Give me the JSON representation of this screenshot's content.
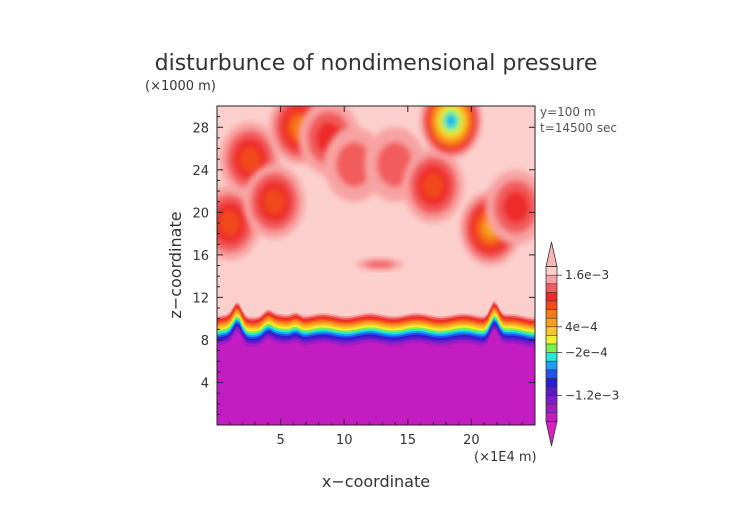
{
  "chart_data": {
    "type": "heatmap",
    "title": "disturbunce of nondimensional pressure",
    "y_unit": "(×1000 m)",
    "x_unit": "(×1E4 m)",
    "xlabel": "x−coordinate",
    "ylabel": "z−coordinate",
    "info_lines": [
      "y=100 m",
      "t=14500 sec"
    ],
    "xlim": [
      0,
      25
    ],
    "ylim": [
      0,
      30
    ],
    "x_ticks": [
      5,
      10,
      15,
      20
    ],
    "y_ticks": [
      4,
      8,
      12,
      16,
      20,
      24,
      28
    ],
    "x_tick_labels": [
      "5",
      "10",
      "15",
      "20"
    ],
    "y_tick_labels": [
      "4",
      "8",
      "12",
      "16",
      "20",
      "24",
      "28"
    ],
    "colorbar": {
      "labels": [
        {
          "value": 0.0016,
          "text": "1.6e−3"
        },
        {
          "value": 0.0004,
          "text": "4e−4"
        },
        {
          "value": -0.0002,
          "text": "−2e−4"
        },
        {
          "value": -0.0012,
          "text": "−1.2e−3"
        }
      ],
      "levels": [
        {
          "upper": 0.0022,
          "color": "#f8b7b4"
        },
        {
          "upper": 0.0018,
          "color": "#fbd0cc"
        },
        {
          "upper": 0.0016,
          "color": "#f7a3a3"
        },
        {
          "upper": 0.0014,
          "color": "#f25c5c"
        },
        {
          "upper": 0.0012,
          "color": "#ee2a2a"
        },
        {
          "upper": 0.001,
          "color": "#f24a1a"
        },
        {
          "upper": 0.0008,
          "color": "#f77a18"
        },
        {
          "upper": 0.0006,
          "color": "#f9a020"
        },
        {
          "upper": 0.0004,
          "color": "#fcc52a"
        },
        {
          "upper": 0.0002,
          "color": "#f3f02e"
        },
        {
          "upper": 0.0,
          "color": "#7df04a"
        },
        {
          "upper": -0.0002,
          "color": "#23e8d8"
        },
        {
          "upper": -0.0004,
          "color": "#1a9ff2"
        },
        {
          "upper": -0.0006,
          "color": "#2450f0"
        },
        {
          "upper": -0.0008,
          "color": "#2a1fd0"
        },
        {
          "upper": -0.001,
          "color": "#5a1ac8"
        },
        {
          "upper": -0.0012,
          "color": "#7d1ccc"
        },
        {
          "upper": -0.0014,
          "color": "#a21cc6"
        },
        {
          "upper": -0.0016,
          "color": "#c31cc2"
        },
        {
          "upper": -0.0022,
          "color": "#d820c0"
        }
      ]
    },
    "regions": {
      "background_value": 0.0018,
      "bottom_value": -0.0016,
      "transition_base_z": 8.2,
      "bumps": [
        {
          "x": 1.6,
          "height": 1.3
        },
        {
          "x": 4.0,
          "height": 0.5
        },
        {
          "x": 6.2,
          "height": 0.4
        },
        {
          "x": 21.8,
          "height": 1.5
        }
      ],
      "upper_features": [
        {
          "x": 1.0,
          "z": 19.0,
          "value": 0.001
        },
        {
          "x": 2.6,
          "z": 25.0,
          "value": 0.001
        },
        {
          "x": 4.5,
          "z": 21.0,
          "value": 0.001
        },
        {
          "x": 6.5,
          "z": 28.0,
          "value": 0.0008
        },
        {
          "x": 8.8,
          "z": 27.0,
          "value": 0.0012
        },
        {
          "x": 10.8,
          "z": 24.5,
          "value": 0.0014
        },
        {
          "x": 14.0,
          "z": 24.5,
          "value": 0.0014
        },
        {
          "x": 17.0,
          "z": 22.5,
          "value": 0.001
        },
        {
          "x": 18.4,
          "z": 28.6,
          "value": -0.0004
        },
        {
          "x": 21.5,
          "z": 18.5,
          "value": 0.0006
        },
        {
          "x": 23.5,
          "z": 20.5,
          "value": 0.0012
        },
        {
          "x": 12.8,
          "z": 15.1,
          "value": 0.0014
        }
      ]
    }
  }
}
